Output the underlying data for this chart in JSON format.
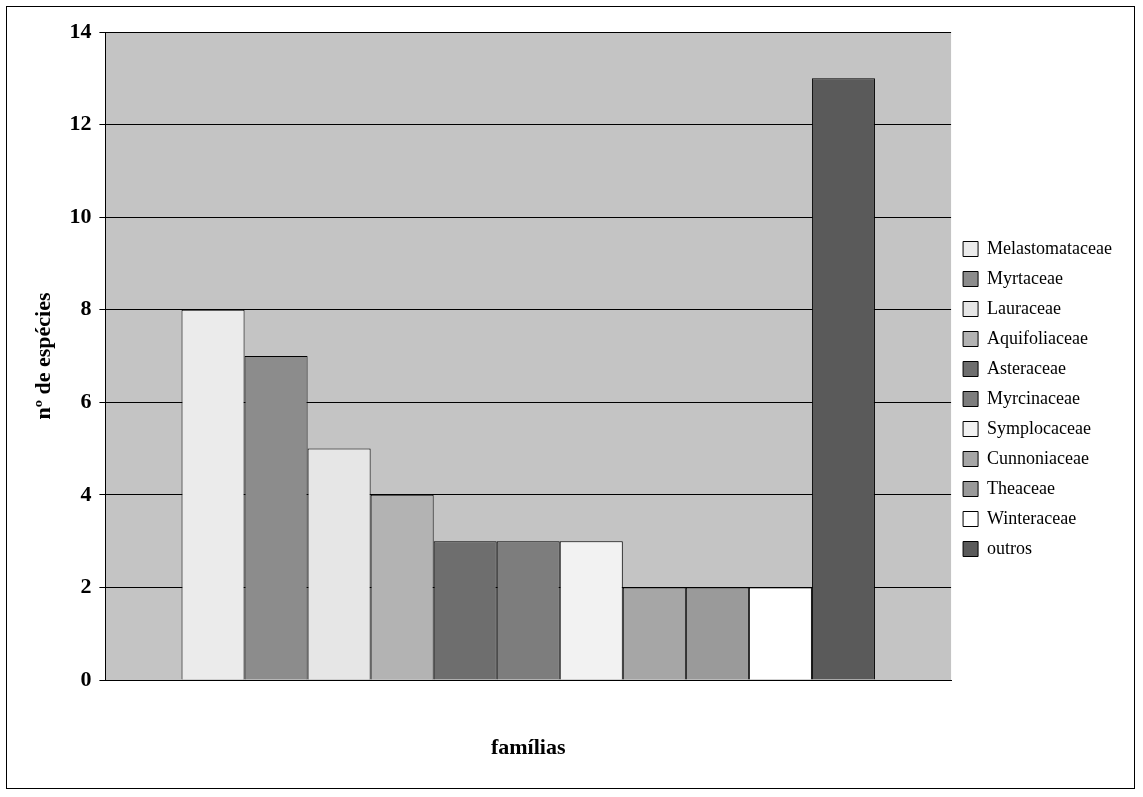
{
  "chart_data": {
    "type": "bar",
    "xlabel": "famílias",
    "ylabel": "nº de espécies",
    "categories": [
      null
    ],
    "series": [
      {
        "name": "Melastomataceae",
        "color": "#ebebeb",
        "values": [
          8
        ]
      },
      {
        "name": "Myrtaceae",
        "color": "#8c8c8c",
        "values": [
          7
        ]
      },
      {
        "name": "Lauraceae",
        "color": "#e6e6e6",
        "values": [
          5
        ]
      },
      {
        "name": "Aquifoliaceae",
        "color": "#b3b3b3",
        "values": [
          4
        ]
      },
      {
        "name": "Asteraceae",
        "color": "#6e6e6e",
        "values": [
          3
        ]
      },
      {
        "name": "Myrcinaceae",
        "color": "#7d7d7d",
        "values": [
          3
        ]
      },
      {
        "name": "Symplocaceae",
        "color": "#f2f2f2",
        "values": [
          3
        ]
      },
      {
        "name": "Cunnoniaceae",
        "color": "#a6a6a6",
        "values": [
          2
        ]
      },
      {
        "name": "Theaceae",
        "color": "#9a9a9a",
        "values": [
          2
        ]
      },
      {
        "name": "Winteraceae",
        "color": "#ffffff",
        "values": [
          2
        ]
      },
      {
        "name": "outros",
        "color": "#5a5a5a",
        "values": [
          13
        ]
      }
    ],
    "ylim": [
      0,
      14
    ],
    "yticks": [
      0,
      2,
      4,
      6,
      8,
      10,
      12,
      14
    ],
    "grid": "y",
    "legend": "right"
  }
}
